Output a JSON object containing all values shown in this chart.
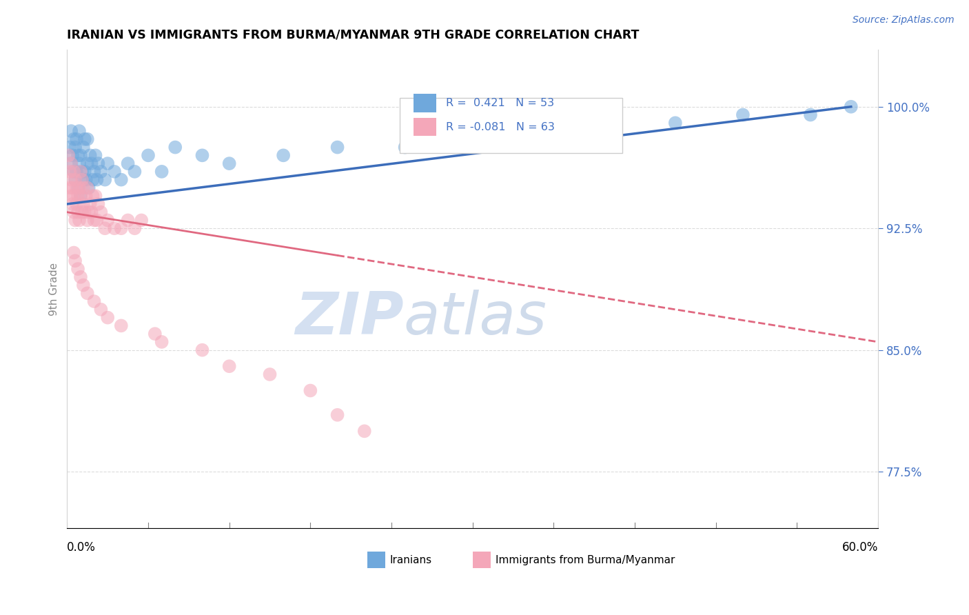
{
  "title": "IRANIAN VS IMMIGRANTS FROM BURMA/MYANMAR 9TH GRADE CORRELATION CHART",
  "source_text": "Source: ZipAtlas.com",
  "ylabel": "9th Grade",
  "yticks": [
    77.5,
    85.0,
    92.5,
    100.0
  ],
  "ytick_labels": [
    "77.5%",
    "85.0%",
    "92.5%",
    "100.0%"
  ],
  "xlim": [
    0.0,
    60.0
  ],
  "ylim": [
    74.0,
    103.5
  ],
  "r_iranian": 0.421,
  "n_iranian": 53,
  "r_burma": -0.081,
  "n_burma": 63,
  "color_iranian": "#6fa8dc",
  "color_burma": "#f4a7b9",
  "trendline_iranian": "#3c6dba",
  "trendline_burma": "#e06880",
  "legend_labels": [
    "Iranians",
    "Immigrants from Burma/Myanmar"
  ],
  "watermark_zip": "ZIP",
  "watermark_atlas": "atlas",
  "iranians_x": [
    0.2,
    0.3,
    0.3,
    0.4,
    0.5,
    0.5,
    0.6,
    0.6,
    0.7,
    0.7,
    0.8,
    0.8,
    0.9,
    0.9,
    1.0,
    1.0,
    1.1,
    1.2,
    1.2,
    1.3,
    1.3,
    1.4,
    1.5,
    1.5,
    1.6,
    1.7,
    1.8,
    1.9,
    2.0,
    2.1,
    2.2,
    2.3,
    2.5,
    2.8,
    3.0,
    3.5,
    4.0,
    4.5,
    5.0,
    6.0,
    7.0,
    8.0,
    10.0,
    12.0,
    16.0,
    20.0,
    25.0,
    35.0,
    40.0,
    45.0,
    50.0,
    55.0,
    58.0
  ],
  "iranians_y": [
    97.5,
    96.5,
    98.5,
    97.0,
    96.0,
    98.0,
    95.5,
    97.5,
    96.0,
    98.0,
    95.0,
    97.0,
    96.5,
    98.5,
    94.5,
    97.0,
    96.0,
    95.5,
    97.5,
    96.0,
    98.0,
    95.5,
    96.5,
    98.0,
    95.0,
    97.0,
    96.5,
    95.5,
    96.0,
    97.0,
    95.5,
    96.5,
    96.0,
    95.5,
    96.5,
    96.0,
    95.5,
    96.5,
    96.0,
    97.0,
    96.0,
    97.5,
    97.0,
    96.5,
    97.0,
    97.5,
    97.5,
    98.0,
    98.5,
    99.0,
    99.5,
    99.5,
    100.0
  ],
  "burma_x": [
    0.1,
    0.2,
    0.2,
    0.3,
    0.3,
    0.3,
    0.4,
    0.4,
    0.5,
    0.5,
    0.5,
    0.6,
    0.6,
    0.7,
    0.7,
    0.8,
    0.8,
    0.9,
    0.9,
    1.0,
    1.0,
    1.1,
    1.1,
    1.2,
    1.2,
    1.3,
    1.4,
    1.5,
    1.5,
    1.6,
    1.7,
    1.8,
    1.9,
    2.0,
    2.1,
    2.2,
    2.3,
    2.5,
    2.8,
    3.0,
    3.5,
    4.0,
    4.5,
    5.0,
    5.5,
    0.5,
    0.6,
    0.8,
    1.0,
    1.2,
    1.5,
    2.0,
    2.5,
    3.0,
    4.0,
    6.5,
    7.0,
    10.0,
    12.0,
    15.0,
    18.0,
    20.0,
    22.0
  ],
  "burma_y": [
    97.0,
    96.0,
    95.0,
    94.5,
    95.5,
    96.5,
    94.0,
    95.0,
    93.5,
    94.5,
    96.0,
    93.0,
    95.5,
    94.0,
    95.0,
    93.5,
    94.5,
    93.0,
    95.0,
    94.5,
    96.0,
    93.5,
    95.5,
    94.0,
    95.0,
    93.5,
    94.5,
    93.0,
    95.0,
    93.5,
    94.0,
    93.5,
    94.5,
    93.0,
    94.5,
    93.0,
    94.0,
    93.5,
    92.5,
    93.0,
    92.5,
    92.5,
    93.0,
    92.5,
    93.0,
    91.0,
    90.5,
    90.0,
    89.5,
    89.0,
    88.5,
    88.0,
    87.5,
    87.0,
    86.5,
    86.0,
    85.5,
    85.0,
    84.0,
    83.5,
    82.5,
    81.0,
    80.0
  ],
  "ir_trend_x0": 0.0,
  "ir_trend_y0": 94.0,
  "ir_trend_x1": 58.0,
  "ir_trend_y1": 100.0,
  "bu_trend_x0": 0.0,
  "bu_trend_y0": 93.5,
  "bu_trend_x1": 60.0,
  "bu_trend_y1": 85.5,
  "bu_solid_xend": 20.0,
  "bu_dashed_xstart": 20.0
}
